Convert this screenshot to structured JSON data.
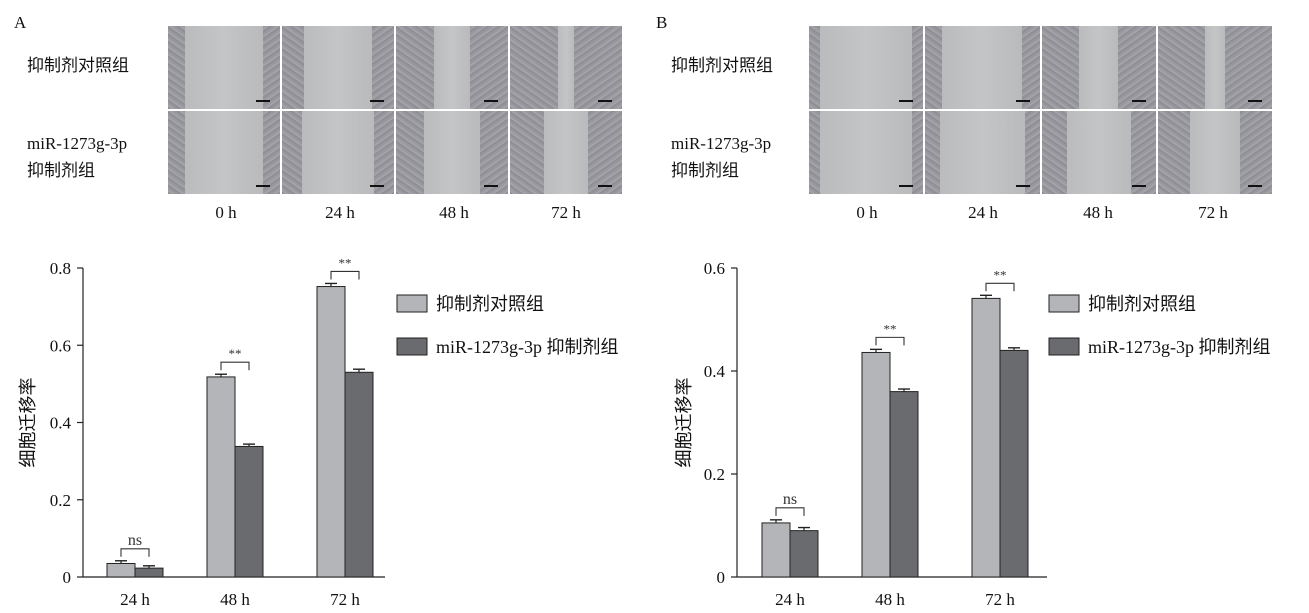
{
  "panels": [
    {
      "letter": "A",
      "row_labels": [
        "抑制剂对照组",
        "miR-1273g-3p",
        "抑制剂组"
      ],
      "time_labels": [
        "0 h",
        "24 h",
        "48 h",
        "72 h"
      ]
    },
    {
      "letter": "B",
      "row_labels": [
        "抑制剂对照组",
        "miR-1273g-3p",
        "抑制剂组"
      ],
      "time_labels": [
        "0 h",
        "24 h",
        "48 h",
        "72 h"
      ]
    }
  ],
  "colors": {
    "control": "#b4b5b8",
    "inhibitor": "#6a6b6e",
    "axis": "#222222"
  },
  "chart_data": [
    {
      "type": "bar",
      "categories": [
        "24 h",
        "48 h",
        "72 h"
      ],
      "series": [
        {
          "name": "抑制剂对照组",
          "values": [
            0.035,
            0.518,
            0.752
          ],
          "errors": [
            0.007,
            0.007,
            0.008
          ]
        },
        {
          "name": "miR-1273g-3p 抑制剂组",
          "values": [
            0.023,
            0.338,
            0.53
          ],
          "errors": [
            0.006,
            0.006,
            0.008
          ]
        }
      ],
      "ylabel": "细胞迁移率",
      "ylim": [
        0,
        0.8
      ],
      "yticks": [
        "0",
        "0.2",
        "0.4",
        "0.6",
        "0.8"
      ],
      "significance": [
        "ns",
        "**",
        "**"
      ],
      "legend": "top-right"
    },
    {
      "type": "bar",
      "categories": [
        "24 h",
        "48 h",
        "72 h"
      ],
      "series": [
        {
          "name": "抑制剂对照组",
          "values": [
            0.105,
            0.436,
            0.541
          ],
          "errors": [
            0.006,
            0.006,
            0.006
          ]
        },
        {
          "name": "miR-1273g-3p 抑制剂组",
          "values": [
            0.09,
            0.36,
            0.44
          ],
          "errors": [
            0.006,
            0.005,
            0.005
          ]
        }
      ],
      "ylabel": "细胞迁移率",
      "ylim": [
        0,
        0.6
      ],
      "yticks": [
        "0",
        "0.2",
        "0.4",
        "0.6"
      ],
      "significance": [
        "ns",
        "**",
        "**"
      ],
      "legend": "top-right"
    }
  ]
}
